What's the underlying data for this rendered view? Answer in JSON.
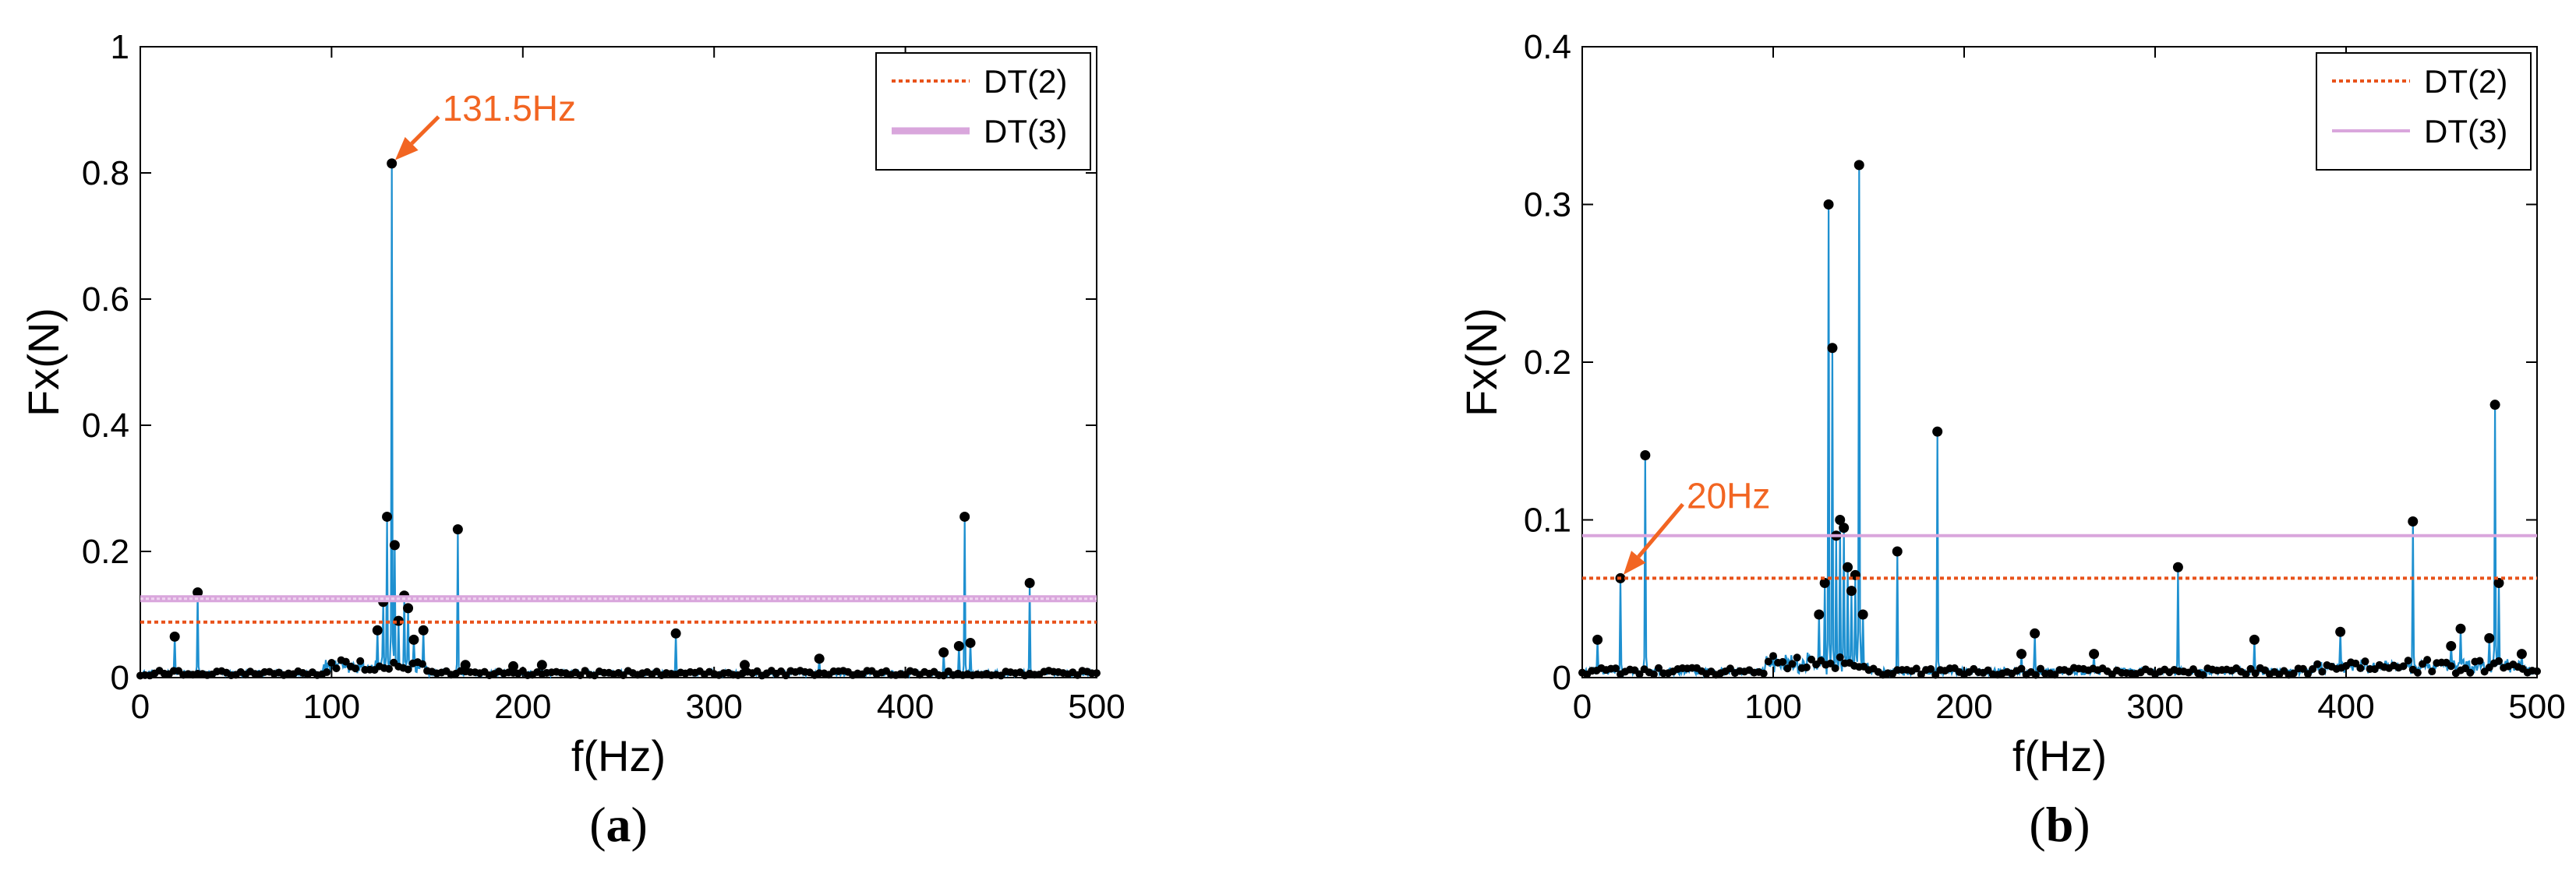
{
  "colors": {
    "signal": "#1e90d0",
    "peaks": "#000000",
    "dt2": "#e8521a",
    "dt3": "#d9a6dc",
    "annotation": "#f26522"
  },
  "chart_data": [
    {
      "type": "line",
      "panel_label": "(a)",
      "xlabel": "f(Hz)",
      "ylabel": "Fx(N)",
      "xlim": [
        0,
        500
      ],
      "ylim": [
        0,
        1
      ],
      "xticks": [
        0,
        100,
        200,
        300,
        400,
        500
      ],
      "yticks": [
        0,
        0.2,
        0.4,
        0.6,
        0.8,
        1
      ],
      "ytick_labels": [
        "0",
        "0.2",
        "0.4",
        "0.6",
        "0.8",
        "1"
      ],
      "grid": false,
      "legend": {
        "position": "top-right",
        "entries": [
          "DT(2)",
          "DT(3)"
        ]
      },
      "thresholds": [
        {
          "name": "DT(2)",
          "value": 0.088,
          "style": "dotted"
        },
        {
          "name": "DT(3)",
          "value": 0.125,
          "style": "band"
        }
      ],
      "annotation": {
        "text": "131.5Hz",
        "x": 131.5,
        "y": 0.815
      },
      "peaks": [
        {
          "x": 18,
          "y": 0.065
        },
        {
          "x": 30,
          "y": 0.135
        },
        {
          "x": 124,
          "y": 0.075
        },
        {
          "x": 127,
          "y": 0.12
        },
        {
          "x": 129,
          "y": 0.255
        },
        {
          "x": 131.5,
          "y": 0.815
        },
        {
          "x": 133,
          "y": 0.21
        },
        {
          "x": 135,
          "y": 0.09
        },
        {
          "x": 138,
          "y": 0.13
        },
        {
          "x": 140,
          "y": 0.11
        },
        {
          "x": 143,
          "y": 0.06
        },
        {
          "x": 148,
          "y": 0.075
        },
        {
          "x": 166,
          "y": 0.235
        },
        {
          "x": 170,
          "y": 0.02
        },
        {
          "x": 195,
          "y": 0.018
        },
        {
          "x": 210,
          "y": 0.02
        },
        {
          "x": 280,
          "y": 0.07
        },
        {
          "x": 316,
          "y": 0.02
        },
        {
          "x": 355,
          "y": 0.03
        },
        {
          "x": 420,
          "y": 0.04
        },
        {
          "x": 428,
          "y": 0.05
        },
        {
          "x": 431,
          "y": 0.255
        },
        {
          "x": 434,
          "y": 0.055
        },
        {
          "x": 465,
          "y": 0.15
        }
      ]
    },
    {
      "type": "line",
      "panel_label": "(b)",
      "xlabel": "f(Hz)",
      "ylabel": "Fx(N)",
      "xlim": [
        0,
        500
      ],
      "ylim": [
        0,
        0.4
      ],
      "xticks": [
        0,
        100,
        200,
        300,
        400,
        500
      ],
      "yticks": [
        0,
        0.1,
        0.2,
        0.3,
        0.4
      ],
      "ytick_labels": [
        "0",
        "0.1",
        "0.2",
        "0.3",
        "0.4"
      ],
      "grid": false,
      "legend": {
        "position": "top-right",
        "entries": [
          "DT(2)",
          "DT(3)"
        ]
      },
      "thresholds": [
        {
          "name": "DT(2)",
          "value": 0.063,
          "style": "dotted"
        },
        {
          "name": "DT(3)",
          "value": 0.09,
          "style": "solid"
        }
      ],
      "annotation": {
        "text": "20Hz",
        "x": 20,
        "y": 0.063
      },
      "peaks": [
        {
          "x": 8,
          "y": 0.024
        },
        {
          "x": 20,
          "y": 0.063
        },
        {
          "x": 33,
          "y": 0.141
        },
        {
          "x": 124,
          "y": 0.04
        },
        {
          "x": 127,
          "y": 0.06
        },
        {
          "x": 129,
          "y": 0.3
        },
        {
          "x": 131,
          "y": 0.209
        },
        {
          "x": 133,
          "y": 0.09
        },
        {
          "x": 135,
          "y": 0.1
        },
        {
          "x": 137,
          "y": 0.095
        },
        {
          "x": 139,
          "y": 0.07
        },
        {
          "x": 141,
          "y": 0.055
        },
        {
          "x": 143,
          "y": 0.065
        },
        {
          "x": 145,
          "y": 0.325
        },
        {
          "x": 147,
          "y": 0.04
        },
        {
          "x": 165,
          "y": 0.08
        },
        {
          "x": 186,
          "y": 0.156
        },
        {
          "x": 230,
          "y": 0.015
        },
        {
          "x": 237,
          "y": 0.028
        },
        {
          "x": 268,
          "y": 0.015
        },
        {
          "x": 312,
          "y": 0.07
        },
        {
          "x": 352,
          "y": 0.024
        },
        {
          "x": 397,
          "y": 0.029
        },
        {
          "x": 435,
          "y": 0.099
        },
        {
          "x": 455,
          "y": 0.02
        },
        {
          "x": 460,
          "y": 0.031
        },
        {
          "x": 475,
          "y": 0.025
        },
        {
          "x": 478,
          "y": 0.173
        },
        {
          "x": 480,
          "y": 0.06
        },
        {
          "x": 492,
          "y": 0.015
        }
      ]
    }
  ]
}
